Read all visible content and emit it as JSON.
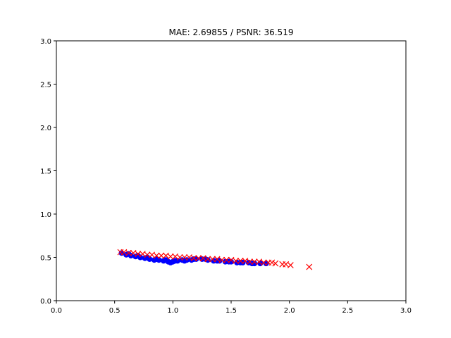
{
  "chart_data": {
    "type": "scatter",
    "title": "MAE: 2.69855 / PSNR: 36.519",
    "xlabel": "",
    "ylabel": "",
    "xlim": [
      0,
      3
    ],
    "ylim": [
      0,
      3
    ],
    "grid": false,
    "legend": "none",
    "xticks": [
      "0.0",
      "0.5",
      "1.0",
      "1.5",
      "2.0",
      "2.5",
      "3.0"
    ],
    "yticks": [
      "0.0",
      "0.5",
      "1.0",
      "1.5",
      "2.0",
      "2.5",
      "3.0"
    ],
    "series": [
      {
        "marker": "dot",
        "color": "#0000ff",
        "x": [
          0.56,
          0.6,
          0.64,
          0.68,
          0.72,
          0.76,
          0.8,
          0.84,
          0.88,
          0.92,
          0.96,
          1.0,
          1.04,
          1.08,
          1.12,
          1.16,
          1.2,
          1.25,
          1.3,
          1.35,
          1.4,
          1.45,
          1.5,
          1.55,
          1.6,
          1.65,
          1.7,
          1.75,
          1.8,
          0.62,
          0.7,
          0.78,
          0.86,
          0.94,
          0.98,
          1.02,
          1.1,
          1.18,
          1.28,
          1.38,
          1.48,
          1.58,
          1.68
        ],
        "y": [
          0.55,
          0.53,
          0.52,
          0.51,
          0.5,
          0.49,
          0.48,
          0.47,
          0.47,
          0.46,
          0.45,
          0.45,
          0.46,
          0.47,
          0.47,
          0.47,
          0.48,
          0.48,
          0.47,
          0.46,
          0.46,
          0.45,
          0.45,
          0.44,
          0.44,
          0.44,
          0.43,
          0.43,
          0.43,
          0.54,
          0.52,
          0.5,
          0.48,
          0.47,
          0.44,
          0.46,
          0.46,
          0.48,
          0.48,
          0.46,
          0.45,
          0.44,
          0.43
        ]
      },
      {
        "marker": "x",
        "color": "#ff0000",
        "x": [
          0.55,
          0.58,
          0.62,
          0.66,
          0.7,
          0.74,
          0.78,
          0.82,
          0.86,
          0.9,
          0.94,
          0.98,
          1.02,
          1.06,
          1.1,
          1.14,
          1.18,
          1.22,
          1.26,
          1.3,
          1.34,
          1.38,
          1.42,
          1.46,
          1.5,
          1.54,
          1.58,
          1.62,
          1.66,
          1.7,
          1.74,
          1.78,
          1.82,
          1.85,
          1.88,
          1.94,
          1.97,
          2.01,
          2.17
        ],
        "y": [
          0.56,
          0.56,
          0.55,
          0.55,
          0.54,
          0.54,
          0.53,
          0.53,
          0.52,
          0.52,
          0.52,
          0.51,
          0.51,
          0.5,
          0.5,
          0.5,
          0.49,
          0.49,
          0.49,
          0.48,
          0.48,
          0.48,
          0.47,
          0.47,
          0.47,
          0.46,
          0.46,
          0.46,
          0.45,
          0.45,
          0.45,
          0.44,
          0.44,
          0.44,
          0.43,
          0.42,
          0.42,
          0.41,
          0.39
        ]
      }
    ]
  }
}
